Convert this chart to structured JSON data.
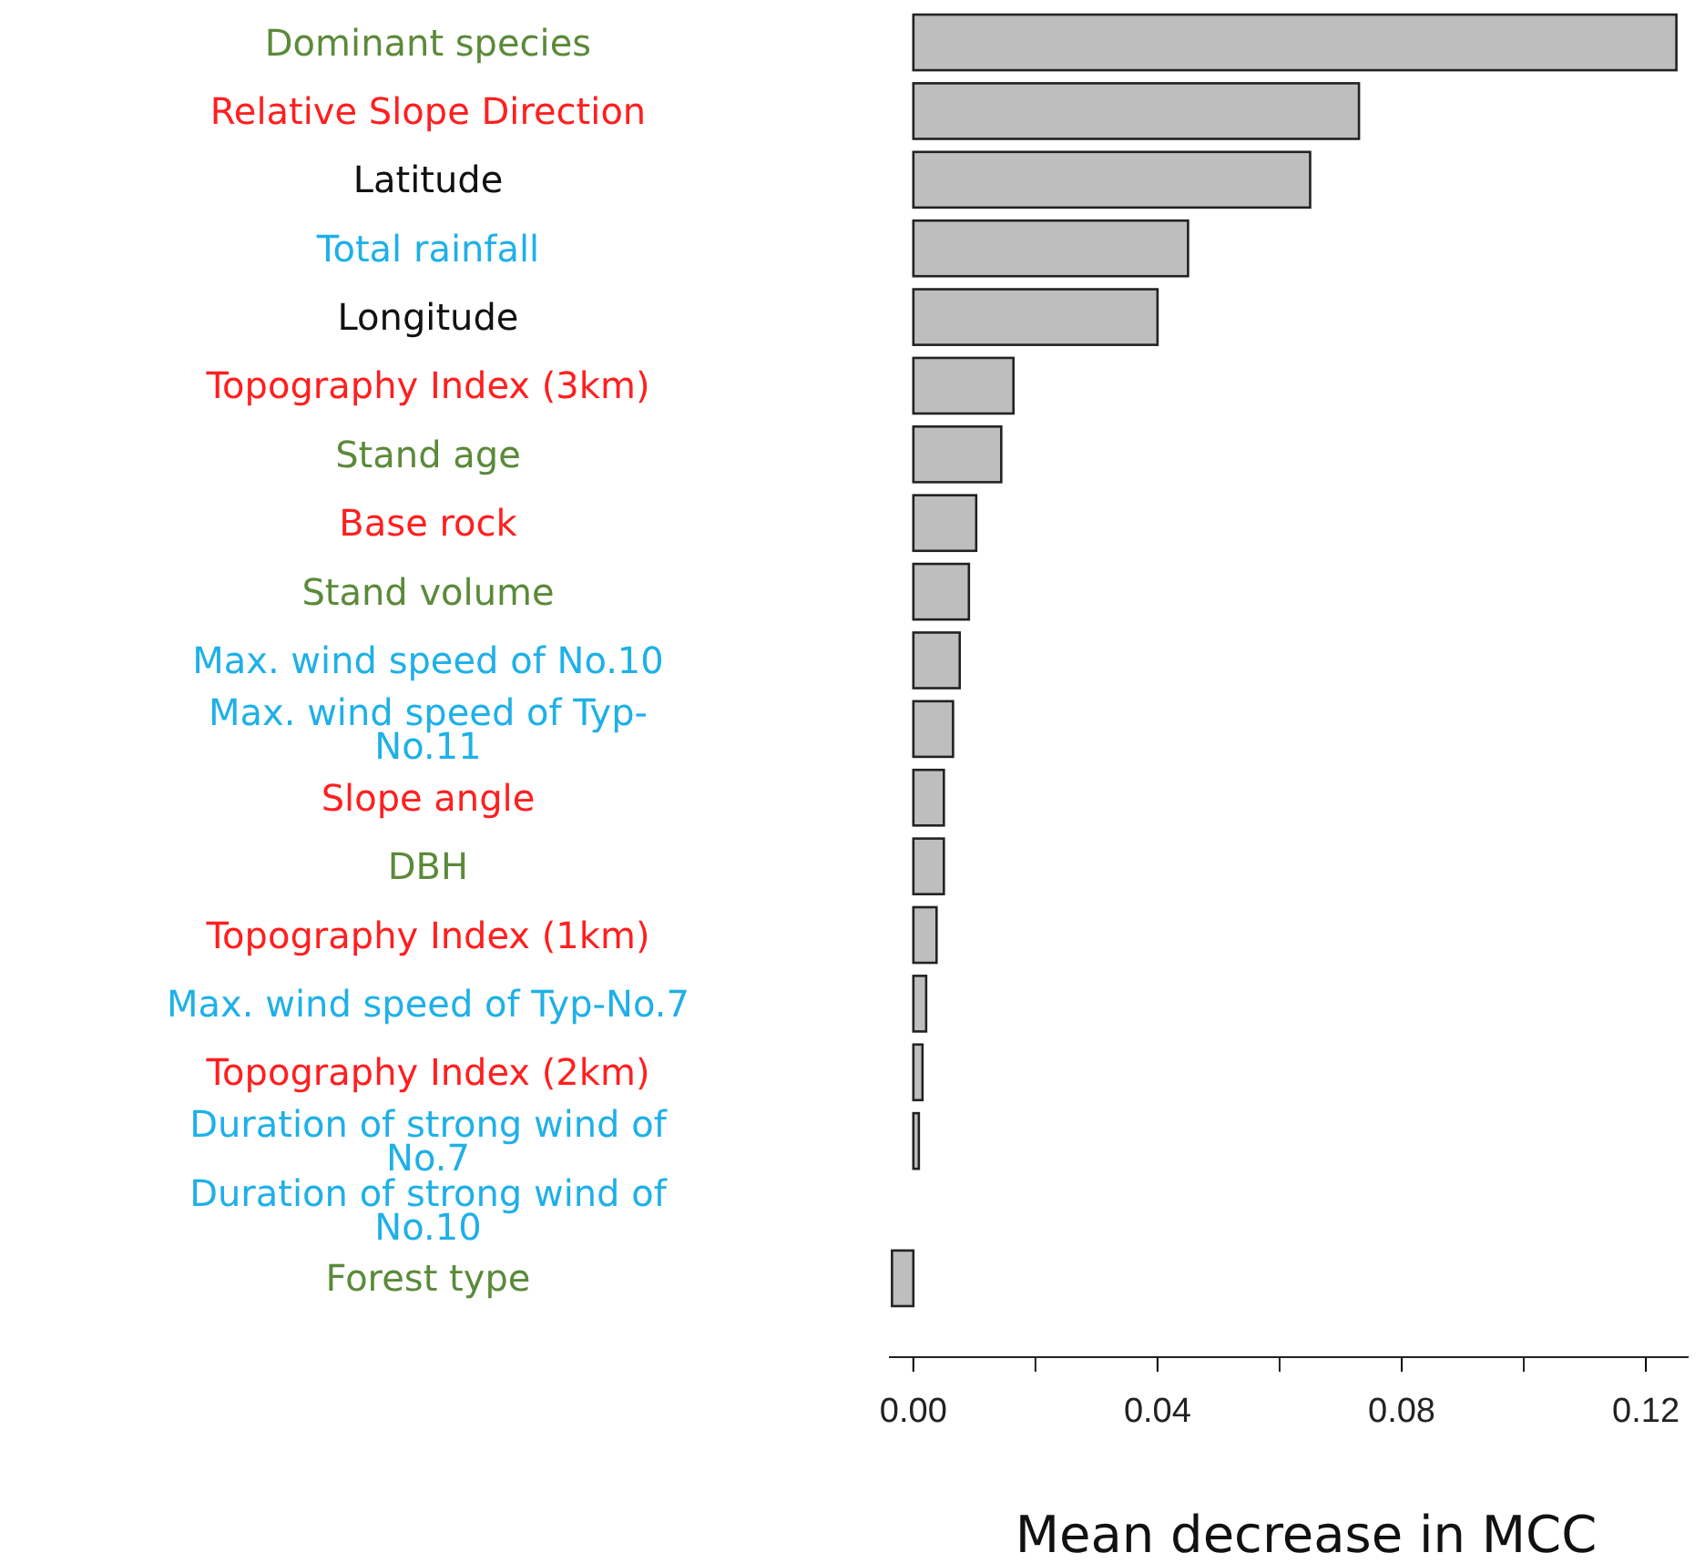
{
  "chart_data": {
    "type": "bar",
    "orientation": "horizontal",
    "xlabel": "Mean decrease in MCC",
    "categories": [
      "Dominant species",
      "Relative Slope Direction",
      "Latitude",
      "Total rainfall",
      "Longitude",
      "Topography Index (3km)",
      "Stand age",
      "Base rock",
      "Stand volume",
      "Max. wind speed of No.10",
      "Max. wind speed of Typ-No.11",
      "Slope angle",
      "DBH",
      "Topography Index (1km)",
      "Max. wind speed of Typ-No.7",
      "Topography Index (2km)",
      "Duration of strong wind of No.7",
      "Duration of strong wind of No.10",
      "Forest type"
    ],
    "values": [
      0.125,
      0.073,
      0.065,
      0.045,
      0.04,
      0.0164,
      0.0144,
      0.0103,
      0.0091,
      0.0076,
      0.0065,
      0.005,
      0.005,
      0.0038,
      0.0021,
      0.0015,
      0.0009,
      0.0,
      -0.0035
    ],
    "color": "#bebebe",
    "xlim": [
      -0.004,
      0.127
    ],
    "xticks": [
      {
        "value": 0,
        "label": "0.00"
      },
      {
        "value": 0.02,
        "label": null
      },
      {
        "value": 0.04,
        "label": "0.04"
      },
      {
        "value": 0.06,
        "label": null
      },
      {
        "value": 0.08,
        "label": "0.08"
      },
      {
        "value": 0.1,
        "label": null
      },
      {
        "value": 0.12,
        "label": "0.12"
      }
    ],
    "grid": false
  }
}
